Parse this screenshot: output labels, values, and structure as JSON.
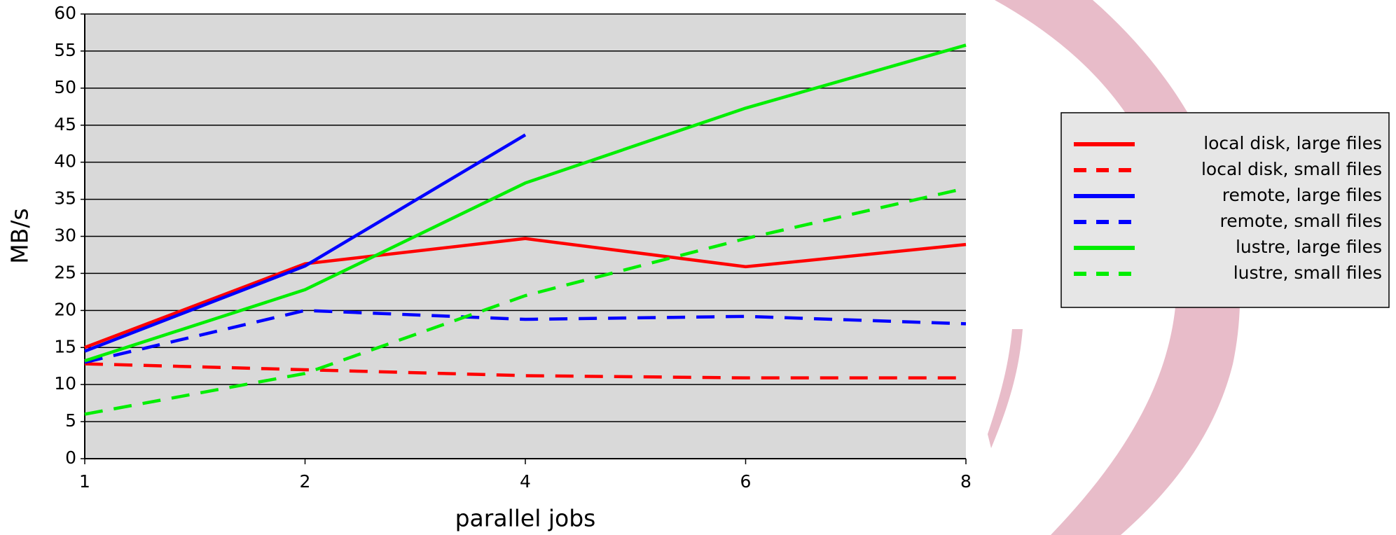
{
  "chart_data": {
    "type": "line",
    "x_label": "parallel jobs",
    "y_label": "MB/s",
    "categories": [
      "1",
      "2",
      "4",
      "6",
      "8"
    ],
    "ylim": [
      0,
      60
    ],
    "yticks": [
      0,
      5,
      10,
      15,
      20,
      25,
      30,
      35,
      40,
      45,
      50,
      55,
      60
    ],
    "grid": true,
    "legend": "right",
    "series": [
      {
        "name": "local disk, large files",
        "color": "#ff0000",
        "dashed": false,
        "values": [
          15,
          26.3,
          29.7,
          25.9,
          28.9
        ]
      },
      {
        "name": "local disk, small files",
        "color": "#ff0000",
        "dashed": true,
        "values": [
          12.8,
          12,
          11.2,
          10.9,
          10.9
        ]
      },
      {
        "name": "remote, large files",
        "color": "#0000ff",
        "dashed": false,
        "values": [
          14.5,
          26,
          43.7,
          null,
          null
        ]
      },
      {
        "name": "remote, small files",
        "color": "#0000ff",
        "dashed": true,
        "values": [
          13,
          20,
          18.8,
          19.2,
          18.2
        ]
      },
      {
        "name": "lustre, large files",
        "color": "#00ee00",
        "dashed": false,
        "values": [
          13.2,
          22.8,
          37.2,
          47.3,
          55.8
        ]
      },
      {
        "name": "lustre, small files",
        "color": "#00ee00",
        "dashed": true,
        "values": [
          6,
          11.5,
          22,
          29.7,
          36.5
        ]
      }
    ]
  }
}
